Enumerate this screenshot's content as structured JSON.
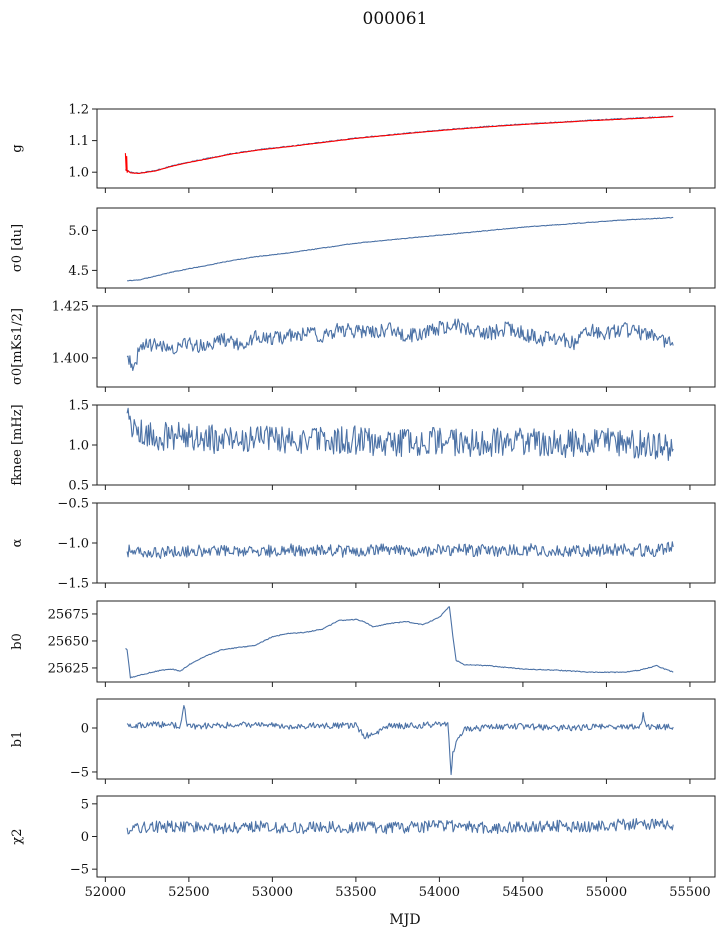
{
  "figure": {
    "title": "000061"
  },
  "chart_data": [
    {
      "type": "line",
      "ylabel": "g",
      "ylim": [
        0.95,
        1.2
      ],
      "yticks": [
        "1.0",
        "1.1",
        "1.2"
      ],
      "ytick_values": [
        1.0,
        1.1,
        1.2
      ],
      "xlim": [
        51950,
        55650
      ],
      "series": [
        {
          "color": "#4c72a6",
          "x": [
            52120,
            52130,
            52150,
            52200,
            52300,
            52400,
            52500,
            52600,
            52750,
            52900,
            53100,
            53300,
            53500,
            53700,
            53900,
            54100,
            54300,
            54500,
            54700,
            54900,
            55100,
            55300,
            55400
          ],
          "values": [
            1.01,
            1.005,
            1.0,
            0.997,
            1.005,
            1.02,
            1.032,
            1.042,
            1.058,
            1.07,
            1.082,
            1.095,
            1.108,
            1.118,
            1.128,
            1.137,
            1.145,
            1.152,
            1.158,
            1.164,
            1.169,
            1.174,
            1.177
          ]
        },
        {
          "color": "#ff0000",
          "x": [
            52120,
            52125,
            52128,
            52131,
            52135,
            52150,
            52200,
            52300,
            52400,
            52500,
            52600,
            52750,
            52900,
            53100,
            53300,
            53500,
            53700,
            53900,
            54100,
            54300,
            54500,
            54700,
            54900,
            55100,
            55300,
            55400
          ],
          "values": [
            1.06,
            1.005,
            1.05,
            1.0,
            1.005,
            0.998,
            0.996,
            1.004,
            1.019,
            1.031,
            1.041,
            1.057,
            1.069,
            1.081,
            1.094,
            1.107,
            1.117,
            1.127,
            1.136,
            1.144,
            1.151,
            1.157,
            1.163,
            1.168,
            1.173,
            1.176
          ]
        }
      ]
    },
    {
      "type": "line",
      "ylabel": "σ0 [du]",
      "ylim": [
        4.28,
        5.28
      ],
      "yticks": [
        "4.5",
        "5.0"
      ],
      "ytick_values": [
        4.5,
        5.0
      ],
      "xlim": [
        51950,
        55650
      ],
      "series": [
        {
          "color": "#4c72a6",
          "x": [
            52130,
            52200,
            52300,
            52400,
            52500,
            52600,
            52750,
            52900,
            53100,
            53300,
            53500,
            53700,
            53900,
            54100,
            54300,
            54500,
            54700,
            54900,
            55100,
            55300,
            55400
          ],
          "values": [
            4.37,
            4.38,
            4.43,
            4.48,
            4.52,
            4.56,
            4.62,
            4.67,
            4.72,
            4.78,
            4.84,
            4.88,
            4.92,
            4.96,
            5.0,
            5.04,
            5.07,
            5.1,
            5.13,
            5.15,
            5.16
          ]
        }
      ]
    },
    {
      "type": "line",
      "ylabel": "σ0[mKs1/2]",
      "ylim": [
        1.386,
        1.425
      ],
      "yticks": [
        "1.400",
        "1.425"
      ],
      "ytick_values": [
        1.4,
        1.425
      ],
      "xlim": [
        51950,
        55650
      ],
      "series": [
        {
          "color": "#4c72a6",
          "x": [
            52130,
            52170,
            52220,
            52300,
            52400,
            52500,
            52600,
            52700,
            52800,
            52900,
            53000,
            53100,
            53200,
            53300,
            53400,
            53500,
            53600,
            53700,
            53800,
            53900,
            54000,
            54100,
            54200,
            54300,
            54400,
            54500,
            54600,
            54700,
            54800,
            54900,
            55000,
            55100,
            55200,
            55300,
            55400
          ],
          "values": [
            1.398,
            1.397,
            1.406,
            1.406,
            1.405,
            1.407,
            1.405,
            1.409,
            1.407,
            1.41,
            1.409,
            1.411,
            1.412,
            1.411,
            1.414,
            1.413,
            1.412,
            1.414,
            1.41,
            1.412,
            1.414,
            1.416,
            1.413,
            1.412,
            1.414,
            1.412,
            1.409,
            1.41,
            1.407,
            1.413,
            1.412,
            1.414,
            1.412,
            1.411,
            1.406
          ]
        }
      ]
    },
    {
      "type": "line",
      "ylabel": "fknee [mHz]",
      "ylim": [
        0.5,
        1.5
      ],
      "yticks": [
        "0.5",
        "1.0",
        "1.5"
      ],
      "ytick_values": [
        0.5,
        1.0,
        1.5
      ],
      "xlim": [
        51950,
        55650
      ],
      "series": [
        {
          "color": "#4c72a6",
          "x": [
            52130,
            52300,
            52500,
            52700,
            52900,
            53100,
            53300,
            53500,
            53700,
            53900,
            54100,
            54300,
            54500,
            54700,
            54900,
            55100,
            55300,
            55400
          ],
          "values": [
            1.3,
            1.1,
            1.12,
            1.05,
            1.08,
            1.04,
            1.05,
            1.06,
            1.02,
            1.05,
            1.04,
            1.03,
            1.05,
            1.02,
            1.04,
            1.02,
            1.0,
            0.95
          ]
        }
      ]
    },
    {
      "type": "line",
      "ylabel": "α",
      "ylim": [
        -1.5,
        -0.5
      ],
      "yticks": [
        "−1.5",
        "−1.0",
        "−0.5"
      ],
      "ytick_values": [
        -1.5,
        -1.0,
        -0.5
      ],
      "xlim": [
        51950,
        55650
      ],
      "series": [
        {
          "color": "#4c72a6",
          "x": [
            52130,
            52300,
            52500,
            52700,
            52900,
            53100,
            53300,
            53500,
            53700,
            53900,
            54100,
            54300,
            54500,
            54700,
            54900,
            55100,
            55300,
            55400
          ],
          "values": [
            -1.1,
            -1.12,
            -1.1,
            -1.08,
            -1.1,
            -1.09,
            -1.1,
            -1.1,
            -1.08,
            -1.1,
            -1.09,
            -1.1,
            -1.08,
            -1.1,
            -1.09,
            -1.08,
            -1.1,
            -1.05
          ]
        }
      ]
    },
    {
      "type": "line",
      "ylabel": "b0",
      "ylim": [
        25612,
        25687
      ],
      "yticks": [
        "25625",
        "25650",
        "25675"
      ],
      "ytick_values": [
        25625,
        25650,
        25675
      ],
      "xlim": [
        51950,
        55650
      ],
      "series": [
        {
          "color": "#4c72a6",
          "x": [
            52120,
            52130,
            52150,
            52200,
            52300,
            52400,
            52450,
            52500,
            52600,
            52700,
            52800,
            52900,
            53000,
            53100,
            53200,
            53300,
            53400,
            53500,
            53550,
            53600,
            53700,
            53800,
            53900,
            54000,
            54060,
            54080,
            54100,
            54150,
            54300,
            54500,
            54700,
            54900,
            55100,
            55200,
            55300,
            55400
          ],
          "values": [
            25643,
            25642,
            25616,
            25618,
            25622,
            25624,
            25622,
            25628,
            25636,
            25642,
            25644,
            25646,
            25654,
            25657,
            25658,
            25661,
            25669,
            25670,
            25668,
            25663,
            25666,
            25668,
            25665,
            25672,
            25682,
            25655,
            25632,
            25628,
            25627,
            25624,
            25623,
            25621,
            25621,
            25623,
            25627,
            25621
          ]
        }
      ]
    },
    {
      "type": "line",
      "ylabel": "b1",
      "ylim": [
        -5.8,
        3.3
      ],
      "yticks": [
        "−5",
        "0"
      ],
      "ytick_values": [
        -5,
        0
      ],
      "xlim": [
        51950,
        55650
      ],
      "series": [
        {
          "color": "#4c72a6",
          "x": [
            52130,
            52300,
            52450,
            52470,
            52490,
            52700,
            52900,
            53100,
            53300,
            53500,
            53550,
            53700,
            53900,
            54050,
            54070,
            54080,
            54100,
            54150,
            54300,
            54500,
            54700,
            54900,
            55100,
            55200,
            55220,
            55240,
            55400
          ],
          "values": [
            0.2,
            0.4,
            0.3,
            2.8,
            0.2,
            0.3,
            0.4,
            0.2,
            0.3,
            0.3,
            -1.0,
            0.2,
            0.3,
            0.6,
            -5.2,
            -3.0,
            -1.5,
            -0.2,
            0.1,
            0.2,
            0.0,
            0.1,
            0.2,
            0.1,
            1.5,
            0.1,
            0.1
          ]
        }
      ]
    },
    {
      "type": "line",
      "ylabel": "χ2",
      "ylim": [
        -6.2,
        6.2
      ],
      "yticks": [
        "−5",
        "0",
        "5"
      ],
      "ytick_values": [
        -5,
        0,
        5
      ],
      "xlim": [
        51950,
        55650
      ],
      "series": [
        {
          "color": "#4c72a6",
          "x": [
            52130,
            52300,
            52500,
            52700,
            52900,
            53100,
            53300,
            53500,
            53700,
            53900,
            54100,
            54300,
            54500,
            54700,
            54900,
            55100,
            55300,
            55400
          ],
          "values": [
            1.2,
            1.5,
            1.4,
            1.3,
            1.6,
            1.2,
            1.5,
            1.4,
            1.3,
            1.5,
            1.6,
            1.3,
            1.5,
            1.6,
            1.5,
            1.8,
            2.0,
            1.8
          ]
        }
      ]
    }
  ],
  "x_axis": {
    "label": "MJD",
    "ticks": [
      "52000",
      "52500",
      "53000",
      "53500",
      "54000",
      "54500",
      "55000",
      "55500"
    ],
    "tick_values": [
      52000,
      52500,
      53000,
      53500,
      54000,
      54500,
      55000,
      55500
    ]
  }
}
